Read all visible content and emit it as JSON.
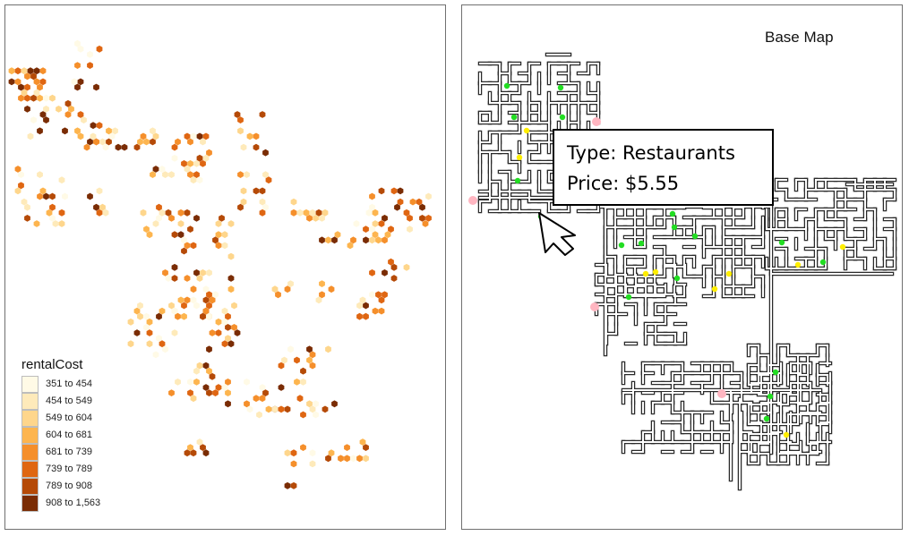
{
  "left_map": {
    "legend": {
      "title": "rentalCost",
      "items": [
        {
          "label": "351 to 454",
          "color": "#fffae6"
        },
        {
          "label": "454 to 549",
          "color": "#feeaba"
        },
        {
          "label": "549 to 604",
          "color": "#fed68c"
        },
        {
          "label": "604 to 681",
          "color": "#fdb54f"
        },
        {
          "label": "681 to 739",
          "color": "#f58f2b"
        },
        {
          "label": "739 to 789",
          "color": "#df6612"
        },
        {
          "label": "789 to 908",
          "color": "#b54a07"
        },
        {
          "label": "908 to 1,563",
          "color": "#7a2c04"
        }
      ]
    }
  },
  "base_map": {
    "title": "Base Map",
    "tooltip": {
      "type_line": "Type: Restaurants",
      "price_line": "Price: $5.55"
    },
    "marker_colors": {
      "green": "#22dd22",
      "yellow": "#ffee00",
      "pink": "#ffb6c1"
    },
    "pointer_icon": "cursor-arrow-icon"
  }
}
